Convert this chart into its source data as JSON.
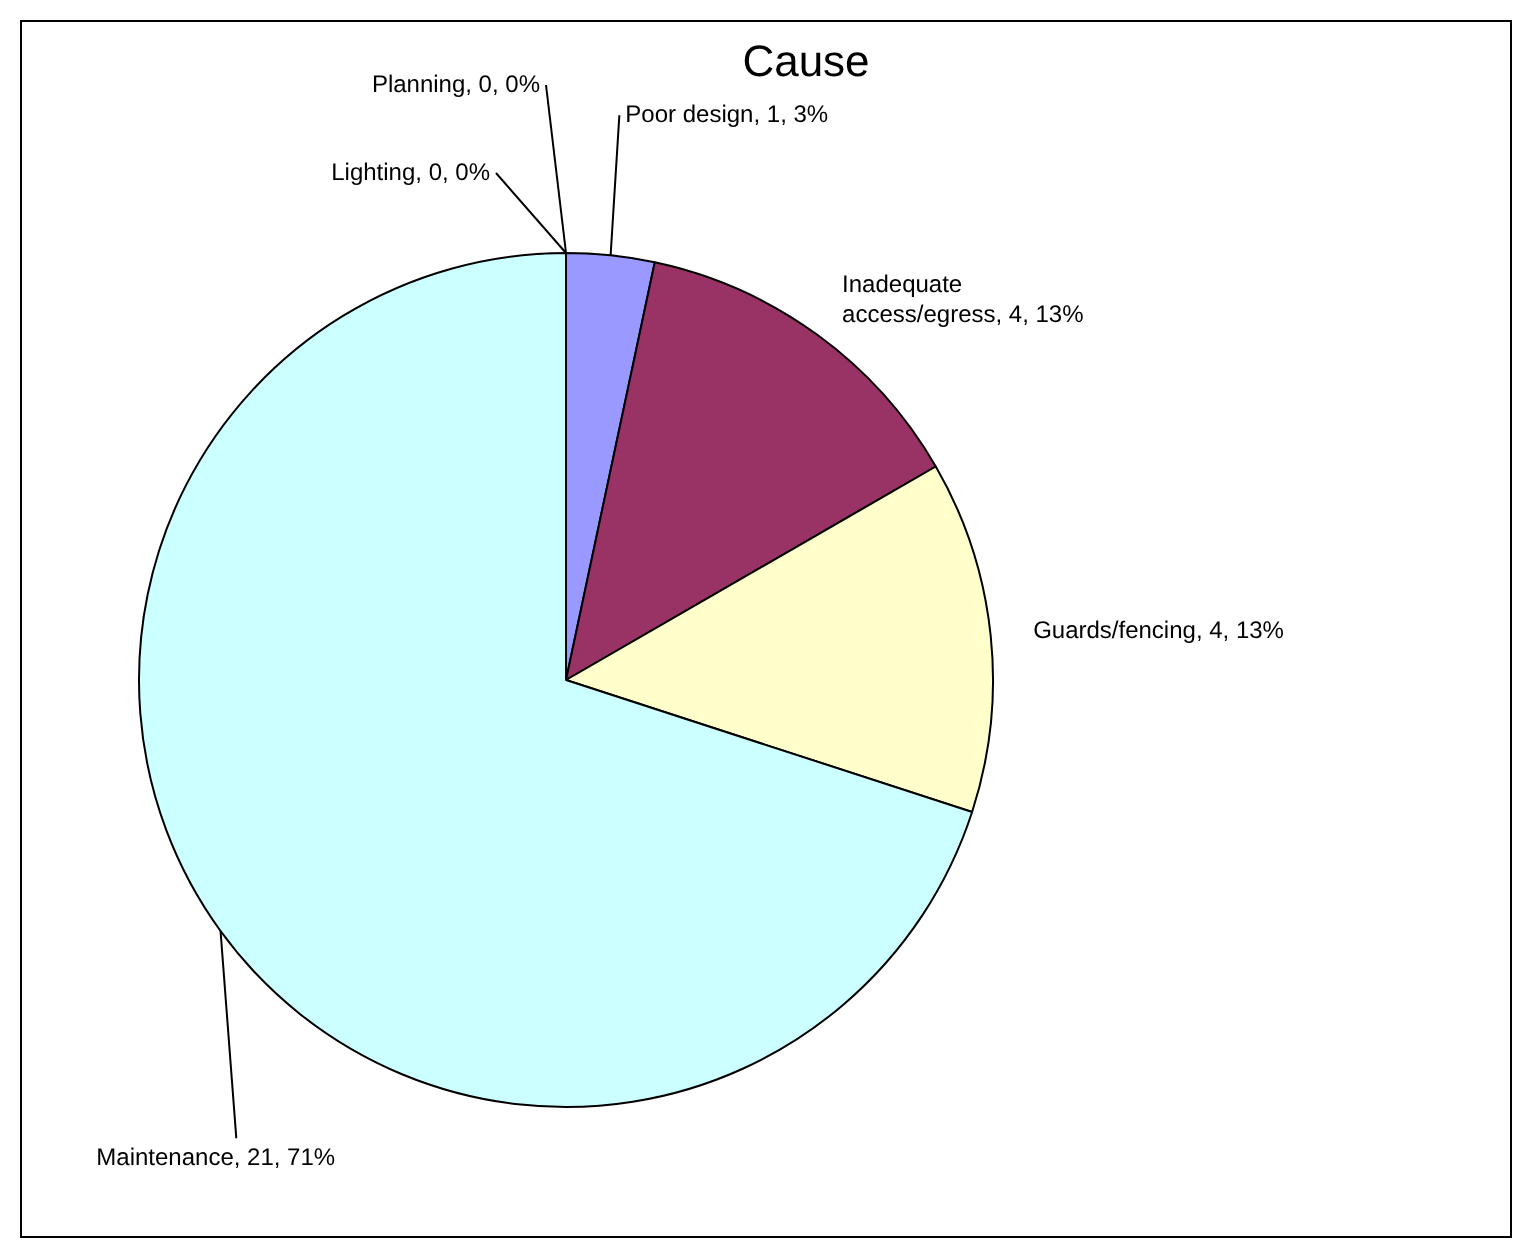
{
  "chart_data": {
    "type": "pie",
    "title": "Cause",
    "categories": [
      "Poor design",
      "Inadequate access/egress",
      "Guards/fencing",
      "Maintenance",
      "Lighting",
      "Planning"
    ],
    "values": [
      1,
      4,
      4,
      21,
      0,
      0
    ],
    "colors": [
      "#9999ff",
      "#993366",
      "#ffffcc",
      "#ccffff",
      "#660066",
      "#ff8080"
    ],
    "value_labels": [
      ", 1, 3%",
      ", 4, 13%",
      ", 4, 13%",
      ", 21, 71%",
      ", 0, 0%",
      ", 0, 0%"
    ]
  }
}
